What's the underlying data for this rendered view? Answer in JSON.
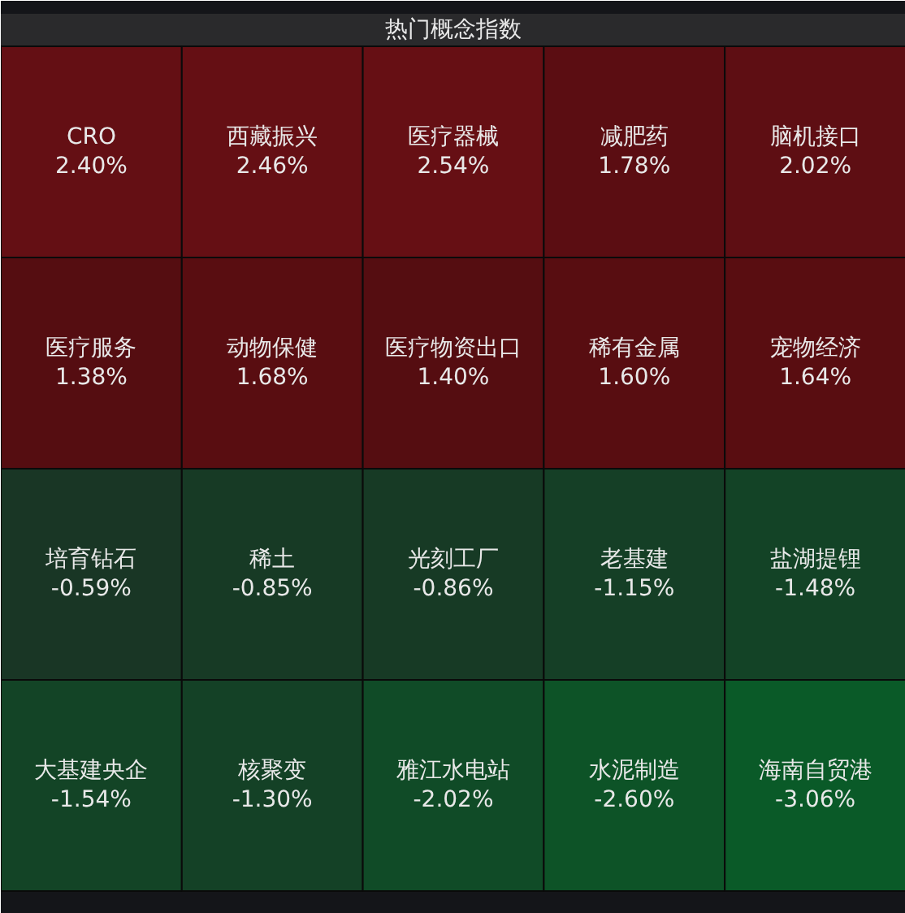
{
  "chart_data": {
    "type": "other",
    "title": "热门概念指数",
    "categories": [
      "CRO",
      "西藏振兴",
      "医疗器械",
      "减肥药",
      "脑机接口",
      "医疗服务",
      "动物保健",
      "医疗物资出口",
      "稀有金属",
      "宠物经济",
      "培育钻石",
      "稀土",
      "光刻工厂",
      "老基建",
      "盐湖提锂",
      "大基建央企",
      "核聚变",
      "雅江水电站",
      "水泥制造",
      "海南自贸港"
    ],
    "values": [
      2.4,
      2.46,
      2.54,
      1.78,
      2.02,
      1.38,
      1.68,
      1.4,
      1.6,
      1.64,
      -0.59,
      -0.85,
      -0.86,
      -1.15,
      -1.48,
      -1.54,
      -1.3,
      -2.02,
      -2.6,
      -3.06
    ],
    "value_labels": [
      "2.40%",
      "2.46%",
      "2.54%",
      "1.78%",
      "2.02%",
      "1.38%",
      "1.68%",
      "1.40%",
      "1.60%",
      "1.64%",
      "-0.59%",
      "-0.85%",
      "-0.86%",
      "-1.15%",
      "-1.48%",
      "-1.54%",
      "-1.30%",
      "-2.02%",
      "-2.60%",
      "-3.06%"
    ]
  }
}
